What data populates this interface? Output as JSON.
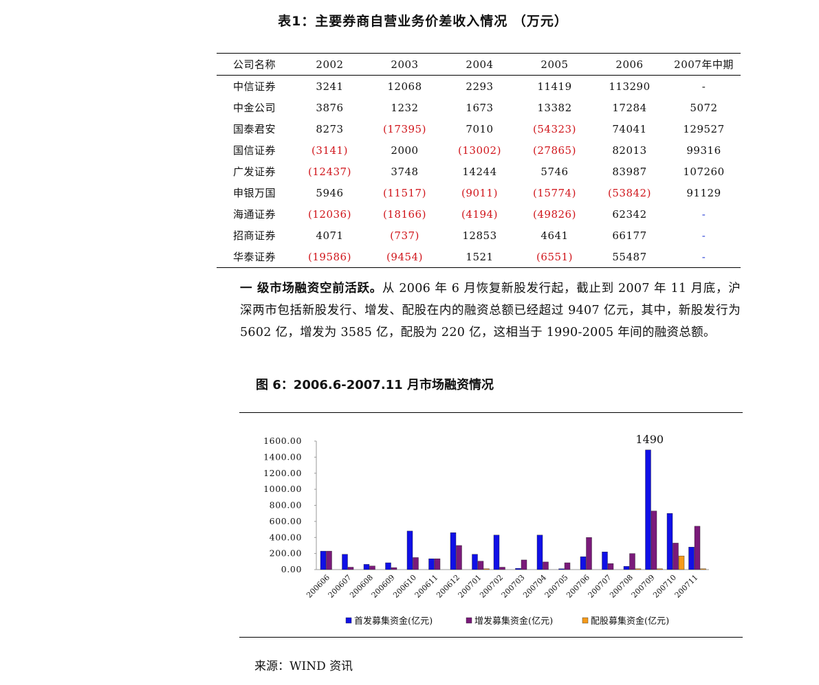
{
  "table": {
    "title": "表1：主要券商自营业务价差收入情况 （万元）",
    "headers": [
      "公司名称",
      "2002",
      "2003",
      "2004",
      "2005",
      "2006",
      "2007年中期"
    ],
    "rows": [
      {
        "name": "中信证券",
        "cells": [
          {
            "v": "3241"
          },
          {
            "v": "12068"
          },
          {
            "v": "2293"
          },
          {
            "v": "11419"
          },
          {
            "v": "113290"
          },
          {
            "v": "-"
          }
        ]
      },
      {
        "name": "中金公司",
        "cells": [
          {
            "v": "3876"
          },
          {
            "v": "1232"
          },
          {
            "v": "1673"
          },
          {
            "v": "13382"
          },
          {
            "v": "17284"
          },
          {
            "v": "5072"
          }
        ]
      },
      {
        "name": "国泰君安",
        "cells": [
          {
            "v": "8273"
          },
          {
            "v": "(17395)",
            "neg": true
          },
          {
            "v": "7010"
          },
          {
            "v": "(54323)",
            "neg": true
          },
          {
            "v": "74041"
          },
          {
            "v": "129527"
          }
        ]
      },
      {
        "name": "国信证券",
        "cells": [
          {
            "v": "(3141)",
            "neg": true
          },
          {
            "v": "2000"
          },
          {
            "v": "(13002)",
            "neg": true
          },
          {
            "v": "(27865)",
            "neg": true
          },
          {
            "v": "82013"
          },
          {
            "v": "99316"
          }
        ]
      },
      {
        "name": "广发证券",
        "cells": [
          {
            "v": "(12437)",
            "neg": true
          },
          {
            "v": "3748"
          },
          {
            "v": "14244"
          },
          {
            "v": "5746"
          },
          {
            "v": "83987"
          },
          {
            "v": "107260"
          }
        ]
      },
      {
        "name": "申银万国",
        "cells": [
          {
            "v": "5946"
          },
          {
            "v": "(11517)",
            "neg": true
          },
          {
            "v": "(9011)",
            "neg": true
          },
          {
            "v": "(15774)",
            "neg": true
          },
          {
            "v": "(53842)",
            "neg": true
          },
          {
            "v": "91129"
          }
        ]
      },
      {
        "name": "海通证券",
        "cells": [
          {
            "v": "(12036)",
            "neg": true
          },
          {
            "v": "(18166)",
            "neg": true
          },
          {
            "v": "(4194)",
            "neg": true
          },
          {
            "v": "(49826)",
            "neg": true
          },
          {
            "v": "62342"
          },
          {
            "v": "-",
            "blue": true
          }
        ]
      },
      {
        "name": "招商证券",
        "cells": [
          {
            "v": "4071"
          },
          {
            "v": "(737)",
            "neg": true
          },
          {
            "v": "12853"
          },
          {
            "v": "4641"
          },
          {
            "v": "66177"
          },
          {
            "v": "-",
            "blue": true
          }
        ]
      },
      {
        "name": "华泰证券",
        "cells": [
          {
            "v": "(19586)",
            "neg": true
          },
          {
            "v": "(9454)",
            "neg": true
          },
          {
            "v": "1521"
          },
          {
            "v": "(6551)",
            "neg": true
          },
          {
            "v": "55487"
          },
          {
            "v": "-",
            "blue": true
          }
        ]
      }
    ]
  },
  "paragraph": {
    "lead": "一 级市场融资空前活跃。",
    "body": "从 2006 年 6 月恢复新股发行起，截止到 2007 年 11 月底，沪深两市包括新股发行、增发、配股在内的融资总额已经超过 9407 亿元，其中，新股发行为 5602 亿，增发为 3585 亿，配股为 220 亿，这相当于 1990-2005 年间的融资总额。"
  },
  "figure": {
    "title": "图 6：2006.6-2007.11 月市场融资情况",
    "source": "来源：WIND 资讯"
  },
  "chart_data": {
    "type": "bar",
    "categories": [
      "200606",
      "200607",
      "200608",
      "200609",
      "200610",
      "200611",
      "200612",
      "200701",
      "200702",
      "200703",
      "200704",
      "200705",
      "200706",
      "200707",
      "200708",
      "200709",
      "200710",
      "200711"
    ],
    "series": [
      {
        "name": "首发募集资金(亿元)",
        "color": "#1010e6",
        "values": [
          230,
          190,
          65,
          85,
          480,
          135,
          460,
          190,
          430,
          15,
          430,
          10,
          160,
          220,
          40,
          1490,
          700,
          280
        ]
      },
      {
        "name": "增发募集资金(亿元)",
        "color": "#7a1a7a",
        "values": [
          230,
          30,
          45,
          25,
          150,
          135,
          300,
          105,
          30,
          120,
          95,
          85,
          400,
          75,
          200,
          730,
          330,
          540
        ]
      },
      {
        "name": "配股募集资金(亿元)",
        "color": "#f59a1a",
        "values": [
          0,
          0,
          0,
          0,
          0,
          0,
          0,
          10,
          0,
          0,
          0,
          0,
          0,
          0,
          10,
          10,
          170,
          10
        ]
      }
    ],
    "yticks": [
      "1600.00",
      "1400.00",
      "1200.00",
      "1000.00",
      "800.00",
      "600.00",
      "400.00",
      "200.00",
      "0.00"
    ],
    "ylim": [
      0,
      1600
    ],
    "annotation": {
      "text": "1490",
      "category": "200709"
    },
    "legend_position": "bottom"
  }
}
